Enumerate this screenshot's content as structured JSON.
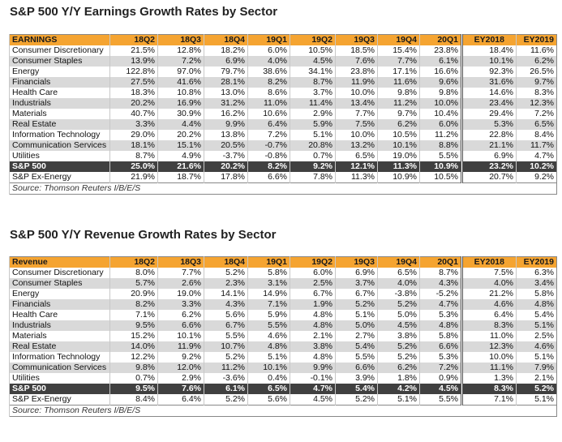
{
  "earnings": {
    "title": "S&P 500 Y/Y Earnings Growth Rates by Sector",
    "header": [
      "EARNINGS",
      "18Q2",
      "18Q3",
      "18Q4",
      "19Q1",
      "19Q2",
      "19Q3",
      "19Q4",
      "20Q1",
      "EY2018",
      "EY2019"
    ],
    "rows": [
      {
        "label": "Consumer Discretionary",
        "values": [
          "21.5%",
          "12.8%",
          "18.2%",
          "6.0%",
          "10.5%",
          "18.5%",
          "15.4%",
          "23.8%",
          "18.4%",
          "11.6%"
        ]
      },
      {
        "label": "Consumer Staples",
        "values": [
          "13.9%",
          "7.2%",
          "6.9%",
          "4.0%",
          "4.5%",
          "7.6%",
          "7.7%",
          "6.1%",
          "10.1%",
          "6.2%"
        ]
      },
      {
        "label": "Energy",
        "values": [
          "122.8%",
          "97.0%",
          "79.7%",
          "38.6%",
          "34.1%",
          "23.8%",
          "17.1%",
          "16.6%",
          "92.3%",
          "26.5%"
        ]
      },
      {
        "label": "Financials",
        "values": [
          "27.5%",
          "41.6%",
          "28.1%",
          "8.2%",
          "8.7%",
          "11.9%",
          "11.6%",
          "9.6%",
          "31.6%",
          "9.7%"
        ]
      },
      {
        "label": "Health Care",
        "values": [
          "18.3%",
          "10.8%",
          "13.0%",
          "8.6%",
          "3.7%",
          "10.0%",
          "9.8%",
          "9.8%",
          "14.6%",
          "8.3%"
        ]
      },
      {
        "label": "Industrials",
        "values": [
          "20.2%",
          "16.9%",
          "31.2%",
          "11.0%",
          "11.4%",
          "13.4%",
          "11.2%",
          "10.0%",
          "23.4%",
          "12.3%"
        ]
      },
      {
        "label": "Materials",
        "values": [
          "40.7%",
          "30.9%",
          "16.2%",
          "10.6%",
          "2.9%",
          "7.7%",
          "9.7%",
          "10.4%",
          "29.4%",
          "7.2%"
        ]
      },
      {
        "label": "Real Estate",
        "values": [
          "3.3%",
          "4.4%",
          "9.9%",
          "6.4%",
          "5.9%",
          "7.5%",
          "6.2%",
          "6.0%",
          "5.3%",
          "6.5%"
        ]
      },
      {
        "label": "Information Technology",
        "values": [
          "29.0%",
          "20.2%",
          "13.8%",
          "7.2%",
          "5.1%",
          "10.0%",
          "10.5%",
          "11.2%",
          "22.8%",
          "8.4%"
        ]
      },
      {
        "label": "Communication Services",
        "values": [
          "18.1%",
          "15.1%",
          "20.5%",
          "-0.7%",
          "20.8%",
          "13.2%",
          "10.1%",
          "8.8%",
          "21.1%",
          "11.7%"
        ]
      },
      {
        "label": "Utilities",
        "values": [
          "8.7%",
          "4.9%",
          "-3.7%",
          "-0.8%",
          "0.7%",
          "6.5%",
          "19.0%",
          "5.5%",
          "6.9%",
          "4.7%"
        ]
      }
    ],
    "total": {
      "label": "S&P 500",
      "values": [
        "25.0%",
        "21.6%",
        "20.2%",
        "8.2%",
        "9.2%",
        "12.1%",
        "11.3%",
        "10.9%",
        "23.2%",
        "10.2%"
      ]
    },
    "ex_energy": {
      "label": "S&P Ex-Energy",
      "values": [
        "21.9%",
        "18.7%",
        "17.8%",
        "6.6%",
        "7.8%",
        "11.3%",
        "10.9%",
        "10.5%",
        "20.7%",
        "9.2%"
      ]
    },
    "source": "Source: Thomson Reuters I/B/E/S"
  },
  "revenue": {
    "title": "S&P 500 Y/Y Revenue Growth Rates by Sector",
    "header": [
      "Revenue",
      "18Q2",
      "18Q3",
      "18Q4",
      "19Q1",
      "19Q2",
      "19Q3",
      "19Q4",
      "20Q1",
      "EY2018",
      "EY2019"
    ],
    "rows": [
      {
        "label": "Consumer Discretionary",
        "values": [
          "8.0%",
          "7.7%",
          "5.2%",
          "5.8%",
          "6.0%",
          "6.9%",
          "6.5%",
          "8.7%",
          "7.5%",
          "6.3%"
        ]
      },
      {
        "label": "Consumer Staples",
        "values": [
          "5.7%",
          "2.6%",
          "2.3%",
          "3.1%",
          "2.5%",
          "3.7%",
          "4.0%",
          "4.3%",
          "4.0%",
          "3.4%"
        ]
      },
      {
        "label": "Energy",
        "values": [
          "20.9%",
          "19.0%",
          "14.1%",
          "14.9%",
          "6.7%",
          "6.7%",
          "-3.8%",
          "-5.2%",
          "21.2%",
          "5.8%"
        ]
      },
      {
        "label": "Financials",
        "values": [
          "8.2%",
          "3.3%",
          "4.3%",
          "7.1%",
          "1.9%",
          "5.2%",
          "5.2%",
          "4.7%",
          "4.6%",
          "4.8%"
        ]
      },
      {
        "label": "Health Care",
        "values": [
          "7.1%",
          "6.2%",
          "5.6%",
          "5.9%",
          "4.8%",
          "5.1%",
          "5.0%",
          "5.3%",
          "6.4%",
          "5.4%"
        ]
      },
      {
        "label": "Industrials",
        "values": [
          "9.5%",
          "6.6%",
          "6.7%",
          "5.5%",
          "4.8%",
          "5.0%",
          "4.5%",
          "4.8%",
          "8.3%",
          "5.1%"
        ]
      },
      {
        "label": "Materials",
        "values": [
          "15.2%",
          "10.1%",
          "5.5%",
          "4.6%",
          "2.1%",
          "2.7%",
          "3.8%",
          "5.8%",
          "11.0%",
          "2.5%"
        ]
      },
      {
        "label": "Real Estate",
        "values": [
          "14.0%",
          "11.9%",
          "10.7%",
          "4.8%",
          "3.8%",
          "5.4%",
          "5.2%",
          "6.6%",
          "12.3%",
          "4.6%"
        ]
      },
      {
        "label": "Information Technology",
        "values": [
          "12.2%",
          "9.2%",
          "5.2%",
          "5.1%",
          "4.8%",
          "5.5%",
          "5.2%",
          "5.3%",
          "10.0%",
          "5.1%"
        ]
      },
      {
        "label": "Communication Services",
        "values": [
          "9.8%",
          "12.0%",
          "11.2%",
          "10.1%",
          "9.9%",
          "6.6%",
          "6.2%",
          "7.2%",
          "11.1%",
          "7.9%"
        ]
      },
      {
        "label": "Utilities",
        "values": [
          "0.7%",
          "2.9%",
          "-3.6%",
          "0.4%",
          "-0.1%",
          "3.9%",
          "1.8%",
          "0.9%",
          "1.3%",
          "2.1%"
        ]
      }
    ],
    "total": {
      "label": "S&P 500",
      "values": [
        "9.5%",
        "7.6%",
        "6.1%",
        "6.5%",
        "4.7%",
        "5.4%",
        "4.2%",
        "4.5%",
        "8.3%",
        "5.2%"
      ]
    },
    "ex_energy": {
      "label": "S&P Ex-Energy",
      "values": [
        "8.4%",
        "6.4%",
        "5.2%",
        "5.6%",
        "4.5%",
        "5.2%",
        "5.1%",
        "5.5%",
        "7.1%",
        "5.1%"
      ]
    },
    "source": "Source: Thomson Reuters I/B/E/S"
  }
}
